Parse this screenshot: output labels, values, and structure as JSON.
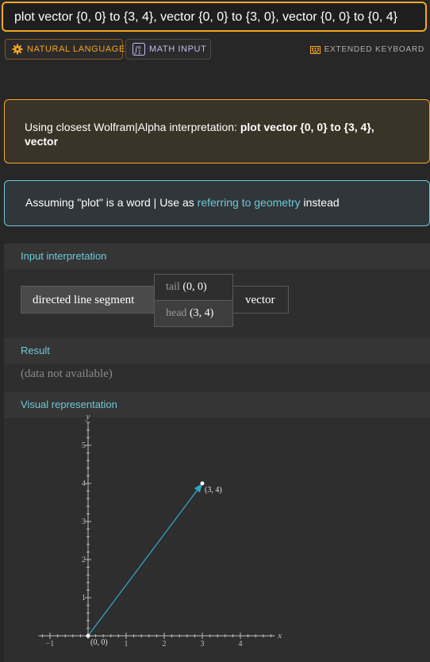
{
  "query": {
    "text": "plot vector {0, 0} to {3, 4}, vector {0, 0} to {3, 0}, vector {0, 0} to {0, 4}",
    "accent": "#f5a623"
  },
  "modes": {
    "natural_language": "NATURAL LANGUAGE",
    "math_input": "MATH INPUT",
    "extended_keyboard": "EXTENDED KEYBOARD"
  },
  "interpretation_notice": {
    "prefix": "Using closest Wolfram|Alpha interpretation: ",
    "interpretation": "plot vector {0, 0} to {3, 4}, vector"
  },
  "assumption_notice": {
    "prefix": "Assuming \"plot\" is a word | Use as ",
    "link": "referring to geometry",
    "suffix": " instead",
    "link_color": "#6ec9d8"
  },
  "pods": {
    "input_interpretation": {
      "title": "Input interpretation",
      "segment_label": "directed line segment",
      "tail_key": "tail",
      "tail_value": "(0, 0)",
      "head_key": "head",
      "head_value": "(3, 4)",
      "type": "vector"
    },
    "result": {
      "title": "Result",
      "text": "(data not available)"
    },
    "visual": {
      "title": "Visual representation"
    }
  },
  "chart_data": {
    "type": "line",
    "series": [
      {
        "points": [
          [
            0,
            0
          ],
          [
            3,
            4
          ]
        ],
        "color": "#2aa6c8"
      }
    ],
    "annotations": [
      {
        "x": 0,
        "y": 0,
        "text": "(0, 0)"
      },
      {
        "x": 3,
        "y": 4,
        "text": "(3, 4)"
      }
    ],
    "xlabel": "x",
    "ylabel": "y",
    "xlim": [
      -1.3,
      4.9
    ],
    "ylim": [
      0,
      5.6
    ],
    "x_ticks": [
      -1,
      1,
      2,
      3,
      4
    ],
    "x_tick_labels": [
      "−1",
      "1",
      "2",
      "3",
      "4"
    ],
    "y_ticks": [
      1,
      2,
      3,
      4,
      5
    ],
    "y_tick_labels": [
      "1",
      "2",
      "3",
      "4",
      "5"
    ],
    "grid": false
  }
}
